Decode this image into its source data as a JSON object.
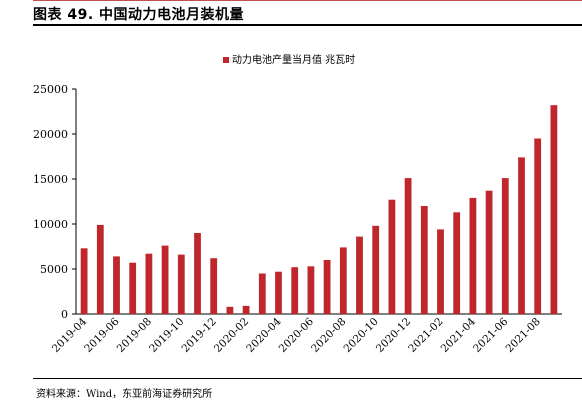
{
  "title": "图表 49. 中国动力电池月装机量",
  "source": "资料来源：Wind，东亚前海证券研究所",
  "chart_data": {
    "type": "bar",
    "legend_position": "top-center",
    "grid": false,
    "color": "#c0272d",
    "series": [
      {
        "name": "动力电池产量当月值 兆瓦时",
        "values": [
          7300,
          9900,
          6400,
          5700,
          6700,
          7600,
          6600,
          9000,
          6200,
          800,
          900,
          4500,
          4700,
          5200,
          5300,
          6000,
          7400,
          8600,
          9800,
          12700,
          15100,
          12000,
          9400,
          11300,
          12900,
          13700,
          15100,
          17400,
          19500,
          23200
        ]
      }
    ],
    "categories": [
      "2019-04",
      "2019-05",
      "2019-06",
      "2019-07",
      "2019-08",
      "2019-09",
      "2019-10",
      "2019-11",
      "2019-12",
      "2020-01",
      "2020-02",
      "2020-03",
      "2020-04",
      "2020-05",
      "2020-06",
      "2020-07",
      "2020-08",
      "2020-09",
      "2020-10",
      "2020-11",
      "2020-12",
      "2021-01",
      "2021-02",
      "2021-03",
      "2021-04",
      "2021-05",
      "2021-06",
      "2021-07",
      "2021-08",
      "2021-09"
    ],
    "x_tick_labels": [
      "2019-04",
      "2019-06",
      "2019-08",
      "2019-10",
      "2019-12",
      "2020-02",
      "2020-04",
      "2020-06",
      "2020-08",
      "2020-10",
      "2020-12",
      "2021-02",
      "2021-04",
      "2021-06",
      "2021-08"
    ],
    "y_ticks": [
      0,
      5000,
      10000,
      15000,
      20000,
      25000
    ],
    "ylim": [
      0,
      25000
    ]
  }
}
